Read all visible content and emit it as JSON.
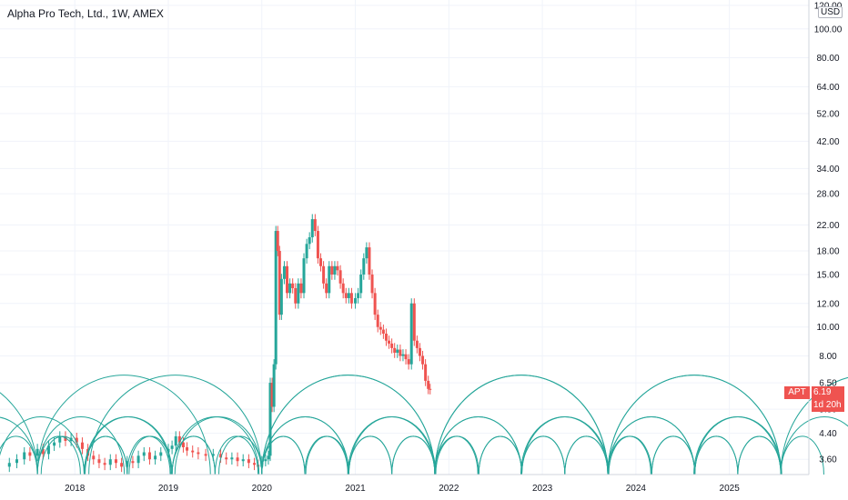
{
  "header": {
    "title": "Alpha Pro Tech, Ltd., 1W, AMEX",
    "currency": "USD"
  },
  "price_tag": {
    "symbol": "APT",
    "price": "6.19",
    "countdown": "1d 20h"
  },
  "colors": {
    "up": "#26a69a",
    "down": "#ef5350",
    "cycle": "#26a69a",
    "grid": "#f0f3fa",
    "text": "#131722"
  },
  "chart_data": {
    "type": "candlestick",
    "title": "Alpha Pro Tech, Ltd., 1W, AMEX",
    "y_scale": "log",
    "y_ticks": [
      "120.00",
      "100.00",
      "80.00",
      "64.00",
      "52.00",
      "42.00",
      "34.00",
      "28.00",
      "22.00",
      "18.00",
      "15.00",
      "12.00",
      "10.00",
      "8.00",
      "6.50",
      "5.30",
      "4.40",
      "3.60"
    ],
    "x_ticks": [
      "2018",
      "2019",
      "2020",
      "2021",
      "2022",
      "2023",
      "2024",
      "2025"
    ],
    "x_range": [
      2017.2,
      2025.85
    ],
    "y_range": [
      3.2,
      125
    ],
    "series": [
      {
        "name": "Price",
        "closes": [
          [
            2017.22,
            3.4
          ],
          [
            2017.3,
            3.5
          ],
          [
            2017.38,
            3.6
          ],
          [
            2017.46,
            3.8
          ],
          [
            2017.52,
            3.7
          ],
          [
            2017.6,
            3.9
          ],
          [
            2017.66,
            3.75
          ],
          [
            2017.72,
            4.0
          ],
          [
            2017.78,
            4.1
          ],
          [
            2017.84,
            4.3
          ],
          [
            2017.9,
            4.15
          ],
          [
            2017.96,
            4.25
          ],
          [
            2018.02,
            4.1
          ],
          [
            2018.08,
            3.9
          ],
          [
            2018.14,
            3.7
          ],
          [
            2018.2,
            3.6
          ],
          [
            2018.26,
            3.5
          ],
          [
            2018.32,
            3.45
          ],
          [
            2018.38,
            3.6
          ],
          [
            2018.44,
            3.5
          ],
          [
            2018.5,
            3.4
          ],
          [
            2018.56,
            3.55
          ],
          [
            2018.62,
            3.5
          ],
          [
            2018.68,
            3.7
          ],
          [
            2018.74,
            3.8
          ],
          [
            2018.8,
            3.6
          ],
          [
            2018.86,
            3.7
          ],
          [
            2018.92,
            3.8
          ],
          [
            2019.0,
            3.9
          ],
          [
            2019.04,
            4.0
          ],
          [
            2019.08,
            4.3
          ],
          [
            2019.12,
            4.1
          ],
          [
            2019.16,
            3.95
          ],
          [
            2019.2,
            3.85
          ],
          [
            2019.26,
            3.8
          ],
          [
            2019.32,
            3.75
          ],
          [
            2019.4,
            3.7
          ],
          [
            2019.48,
            3.75
          ],
          [
            2019.56,
            3.65
          ],
          [
            2019.62,
            3.6
          ],
          [
            2019.68,
            3.65
          ],
          [
            2019.74,
            3.55
          ],
          [
            2019.8,
            3.6
          ],
          [
            2019.86,
            3.5
          ],
          [
            2019.92,
            3.45
          ],
          [
            2019.96,
            3.4
          ],
          [
            2020.0,
            3.55
          ],
          [
            2020.04,
            3.6
          ],
          [
            2020.07,
            3.7
          ],
          [
            2020.09,
            6.5
          ],
          [
            2020.11,
            5.4
          ],
          [
            2020.13,
            7.5
          ],
          [
            2020.15,
            21.0
          ],
          [
            2020.17,
            18.0
          ],
          [
            2020.19,
            11.0
          ],
          [
            2020.21,
            14.5
          ],
          [
            2020.24,
            16.0
          ],
          [
            2020.27,
            13.0
          ],
          [
            2020.3,
            14.0
          ],
          [
            2020.33,
            13.5
          ],
          [
            2020.36,
            12.0
          ],
          [
            2020.39,
            14.0
          ],
          [
            2020.42,
            13.0
          ],
          [
            2020.45,
            17.0
          ],
          [
            2020.48,
            19.0
          ],
          [
            2020.51,
            20.0
          ],
          [
            2020.54,
            23.0
          ],
          [
            2020.57,
            21.0
          ],
          [
            2020.6,
            17.0
          ],
          [
            2020.63,
            16.0
          ],
          [
            2020.66,
            14.0
          ],
          [
            2020.69,
            13.0
          ],
          [
            2020.72,
            16.0
          ],
          [
            2020.75,
            15.0
          ],
          [
            2020.78,
            16.0
          ],
          [
            2020.81,
            15.5
          ],
          [
            2020.84,
            14.0
          ],
          [
            2020.87,
            13.0
          ],
          [
            2020.9,
            12.5
          ],
          [
            2020.93,
            13.0
          ],
          [
            2020.96,
            12.0
          ],
          [
            2021.0,
            12.5
          ],
          [
            2021.03,
            13.0
          ],
          [
            2021.06,
            15.0
          ],
          [
            2021.09,
            17.0
          ],
          [
            2021.12,
            18.5
          ],
          [
            2021.15,
            15.0
          ],
          [
            2021.18,
            13.0
          ],
          [
            2021.21,
            11.0
          ],
          [
            2021.24,
            10.0
          ],
          [
            2021.27,
            9.8
          ],
          [
            2021.3,
            9.5
          ],
          [
            2021.33,
            9.0
          ],
          [
            2021.36,
            8.8
          ],
          [
            2021.39,
            8.5
          ],
          [
            2021.42,
            8.2
          ],
          [
            2021.45,
            8.4
          ],
          [
            2021.48,
            8.0
          ],
          [
            2021.51,
            8.1
          ],
          [
            2021.54,
            7.8
          ],
          [
            2021.57,
            7.5
          ],
          [
            2021.6,
            12.0
          ],
          [
            2021.63,
            9.0
          ],
          [
            2021.66,
            8.5
          ],
          [
            2021.69,
            8.0
          ],
          [
            2021.72,
            7.5
          ],
          [
            2021.75,
            6.6
          ],
          [
            2021.78,
            6.2
          ],
          [
            2021.8,
            6.19
          ]
        ]
      }
    ],
    "cycles": [
      {
        "name": "large",
        "period_years": 1.85,
        "anchors": [
          2017.6,
          2020.0,
          2021.85,
          2023.7,
          2025.55
        ],
        "peak": 6.9
      },
      {
        "name": "medium",
        "period_years": 0.93,
        "anchors": [
          2017.6,
          2018.1,
          2019.04,
          2020.0,
          2020.93,
          2021.85,
          2022.78,
          2023.7,
          2024.63,
          2025.55
        ],
        "peak": 5.0
      },
      {
        "name": "small",
        "period_years": 0.46,
        "anchors": [
          2017.6,
          2018.1,
          2018.56,
          2019.04,
          2019.5,
          2020.0,
          2020.46,
          2020.93,
          2021.39,
          2021.85,
          2022.32,
          2022.78,
          2023.24,
          2023.7,
          2024.17,
          2024.63,
          2025.09,
          2025.55
        ],
        "peak": 4.3
      }
    ]
  }
}
